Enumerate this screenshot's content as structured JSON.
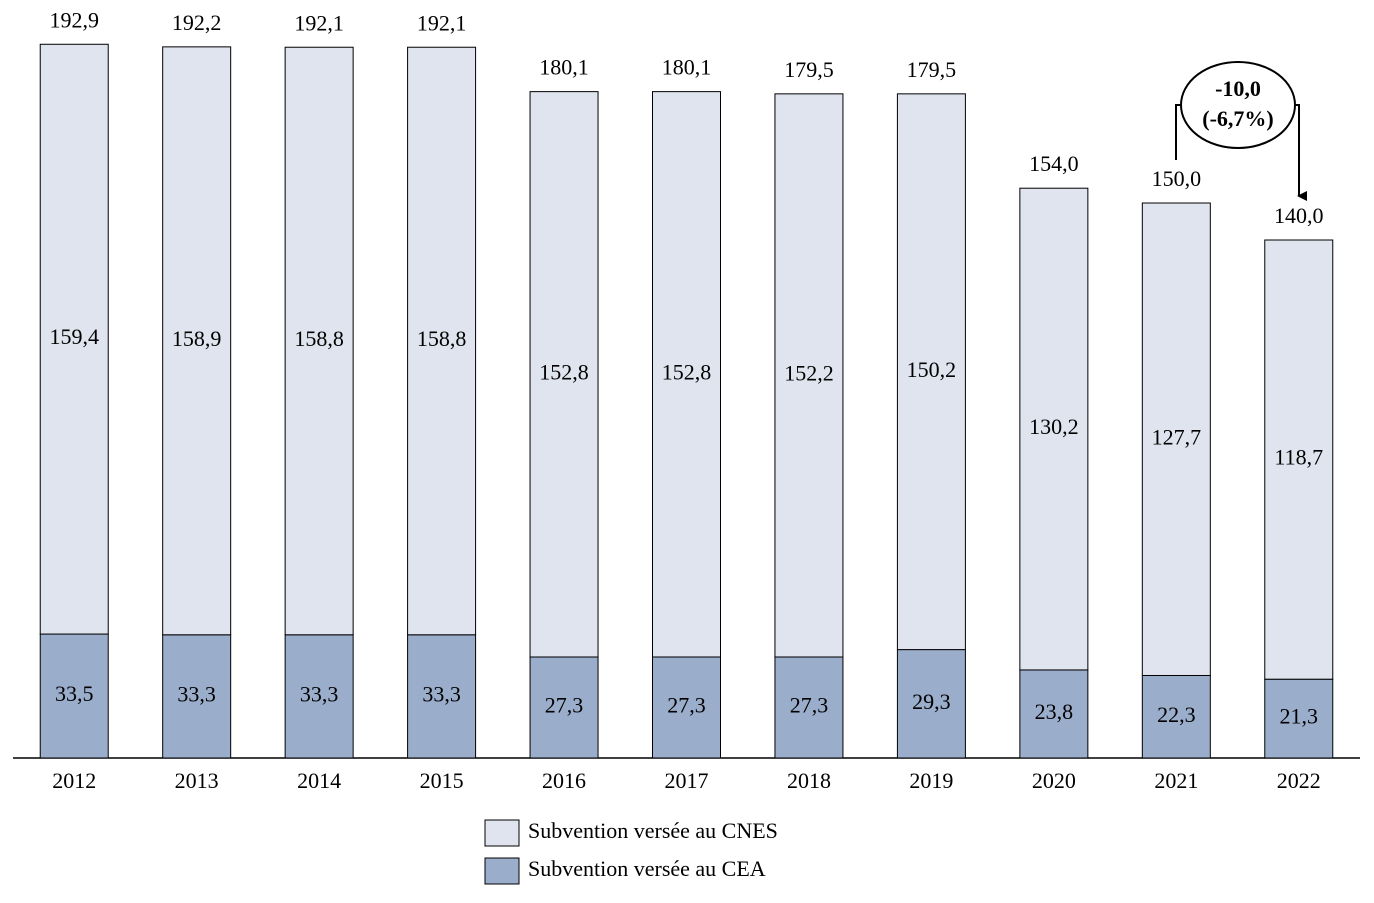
{
  "chart_data": {
    "type": "stacked-bar",
    "categories": [
      "2012",
      "2013",
      "2014",
      "2015",
      "2016",
      "2017",
      "2018",
      "2019",
      "2020",
      "2021",
      "2022"
    ],
    "series": [
      {
        "name": "Subvention versée au CNES",
        "color": "#dfe4ee",
        "values": [
          159.4,
          158.9,
          158.8,
          158.8,
          152.8,
          152.8,
          152.2,
          150.2,
          130.2,
          127.7,
          118.7
        ],
        "value_labels": [
          "159,4",
          "158,9",
          "158,8",
          "158,8",
          "152,8",
          "152,8",
          "152,2",
          "150,2",
          "130,2",
          "127,7",
          "118,7"
        ]
      },
      {
        "name": "Subvention versée au CEA",
        "color": "#9aadcb",
        "values": [
          33.5,
          33.3,
          33.3,
          33.3,
          27.3,
          27.3,
          27.3,
          29.3,
          23.8,
          22.3,
          21.3
        ],
        "value_labels": [
          "33,5",
          "33,3",
          "33,3",
          "33,3",
          "27,3",
          "27,3",
          "27,3",
          "29,3",
          "23,8",
          "22,3",
          "21,3"
        ]
      }
    ],
    "totals": [
      192.9,
      192.2,
      192.1,
      192.1,
      180.1,
      180.1,
      179.5,
      179.5,
      154.0,
      150.0,
      140.0
    ],
    "total_labels": [
      "192,9",
      "192,2",
      "192,1",
      "192,1",
      "180,1",
      "180,1",
      "179,5",
      "179,5",
      "154,0",
      "150,0",
      "140,0"
    ],
    "ylim": [
      0,
      200
    ],
    "annotation": {
      "change": "-10,0",
      "percent": "(-6,7%)"
    }
  }
}
